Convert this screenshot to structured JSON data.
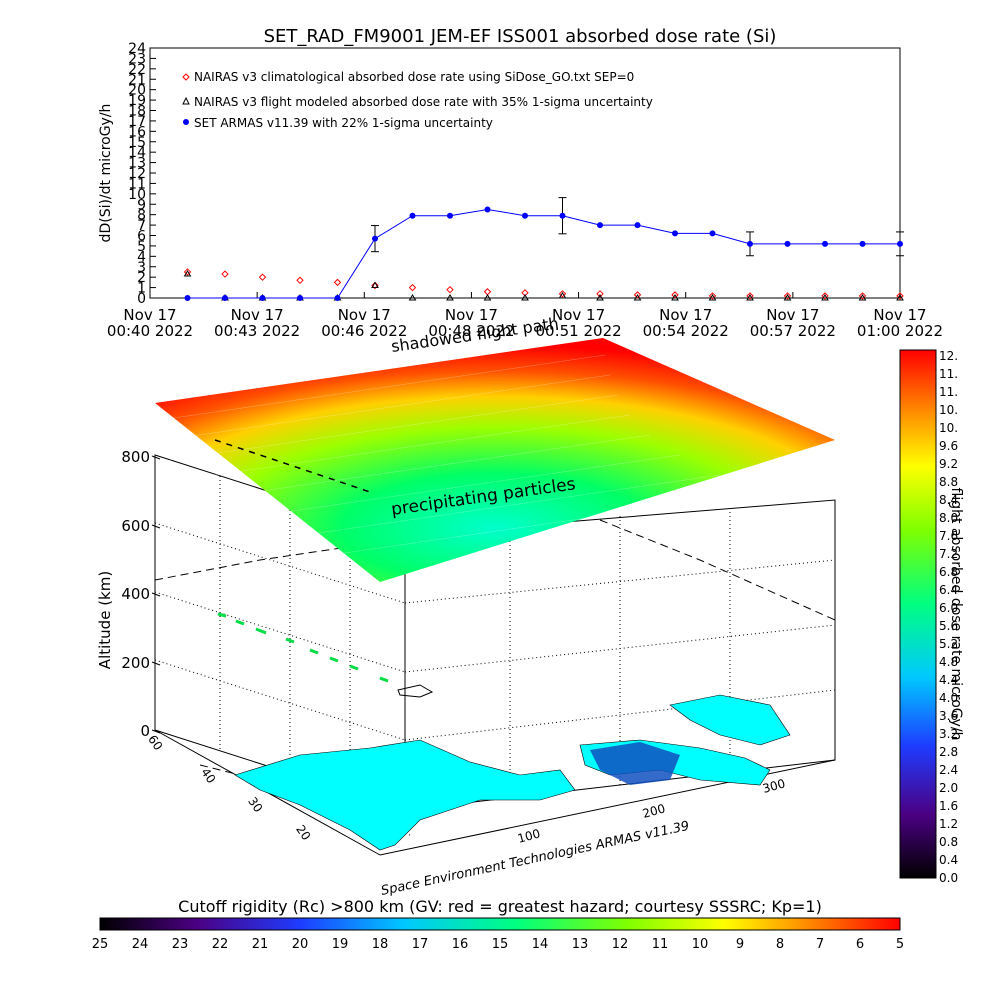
{
  "chart_data": [
    {
      "type": "scatter",
      "title": "SET_RAD_FM9001  JEM-EF ISS001 absorbed dose rate (Si)",
      "ylabel": "dD(Si)/dt microGy/h",
      "ylim": [
        0,
        24
      ],
      "yticks": [
        "0",
        "1",
        "2",
        "3",
        "4",
        "5",
        "6",
        "7",
        "8",
        "9",
        "10",
        "11",
        "12",
        "13",
        "14",
        "15",
        "16",
        "17",
        "18",
        "19",
        "20",
        "21",
        "22",
        "23",
        "24"
      ],
      "xticks": [
        {
          "line1": "Nov 17",
          "line2": "00:40 2022"
        },
        {
          "line1": "Nov 17",
          "line2": "00:43 2022"
        },
        {
          "line1": "Nov 17",
          "line2": "00:46 2022"
        },
        {
          "line1": "Nov 17",
          "line2": "00:48 2022"
        },
        {
          "line1": "Nov 17",
          "line2": "00:51 2022"
        },
        {
          "line1": "Nov 17",
          "line2": "00:54 2022"
        },
        {
          "line1": "Nov 17",
          "line2": "00:57 2022"
        },
        {
          "line1": "Nov 17",
          "line2": "01:00 2022"
        }
      ],
      "xlim_min": [
        0,
        20
      ],
      "legend": [
        "NAIRAS v3 climatological absorbed dose rate using SiDose_GO.txt SEP=0",
        "NAIRAS v3 flight modeled absorbed dose rate with 35% 1-sigma uncertainty",
        "SET ARMAS v11.39 with 22% 1-sigma uncertainty"
      ],
      "legend_position": "top-left",
      "series": [
        {
          "name": "NAIRAS v3 climatological absorbed dose rate using SiDose_GO.txt SEP=0",
          "marker": "diamond",
          "color": "#ff0000",
          "x": [
            1,
            2,
            3,
            4,
            5,
            6,
            7,
            8,
            9,
            10,
            11,
            12,
            13,
            14,
            15,
            16,
            17,
            18,
            19,
            20
          ],
          "y": [
            2.5,
            2.3,
            2.0,
            1.7,
            1.5,
            1.2,
            1.0,
            0.8,
            0.6,
            0.5,
            0.4,
            0.4,
            0.3,
            0.3,
            0.2,
            0.2,
            0.2,
            0.2,
            0.2,
            0.2
          ]
        },
        {
          "name": "NAIRAS v3 flight modeled absorbed dose rate with 35% 1-sigma uncertainty",
          "marker": "triangle",
          "color": "#000000",
          "x": [
            1,
            2,
            3,
            4,
            5,
            6,
            7,
            8,
            9,
            10,
            11,
            12,
            13,
            14,
            15,
            16,
            17,
            18,
            19,
            20
          ],
          "y": [
            2.3,
            0,
            0,
            0,
            0,
            1.2,
            0,
            0,
            0,
            0,
            0.2,
            0,
            0,
            0,
            0,
            0,
            0,
            0,
            0,
            0
          ]
        },
        {
          "name": "SET ARMAS v11.39 with 22% 1-sigma uncertainty",
          "marker": "circle",
          "color": "#0000ff",
          "x": [
            1,
            2,
            3,
            4,
            5,
            6,
            7,
            8,
            9,
            10,
            11,
            12,
            13,
            14,
            15,
            16,
            17,
            18,
            19,
            20
          ],
          "y": [
            0,
            0,
            0,
            0,
            0,
            5.7,
            7.9,
            7.9,
            8.5,
            7.9,
            7.9,
            7.0,
            7.0,
            6.2,
            6.2,
            5.2,
            5.2,
            5.2,
            5.2,
            5.2
          ],
          "error_at": [
            6,
            11,
            16,
            20
          ],
          "error_frac": 0.22
        }
      ]
    },
    {
      "type": "heatmap",
      "zlabel": "Altitude (km)",
      "zticks": [
        "0",
        "200",
        "400",
        "600",
        "800"
      ],
      "lat_ticks": [
        "60",
        "40",
        "30",
        "20"
      ],
      "lon_ticks": [
        "100",
        "200",
        "300"
      ],
      "annotations": [
        "precipitating particles",
        "shadowed flight path"
      ],
      "caption": "Space Environment Technologies ARMAS v11.39"
    },
    {
      "type": "colorbar",
      "ylabel": "flight absorbed dose rate microGy/h",
      "labels": [
        "12.",
        "11.",
        "11.",
        "10.",
        "10.",
        "9.6",
        "9.2",
        "8.8",
        "8.4",
        "8.0",
        "7.6",
        "7.2",
        "6.8",
        "6.4",
        "6.0",
        "5.6",
        "5.2",
        "4.8",
        "4.4",
        "4.0",
        "3.6",
        "3.2",
        "2.8",
        "2.4",
        "2.0",
        "1.6",
        "1.2",
        "0.8",
        "0.4",
        "0.0"
      ]
    },
    {
      "type": "colorbar",
      "title": "Cutoff rigidity (Rc) >800 km (GV: red = greatest hazard; courtesy SSSRC; Kp=1)",
      "labels": [
        "25",
        "24",
        "23",
        "22",
        "21",
        "20",
        "19",
        "18",
        "17",
        "16",
        "15",
        "14",
        "13",
        "12",
        "11",
        "10",
        "9",
        "8",
        "7",
        "6",
        "5"
      ]
    }
  ],
  "colors": {
    "nairas_clim": "#ff0000",
    "armas": "#0000ff",
    "land": "#00ffff"
  }
}
